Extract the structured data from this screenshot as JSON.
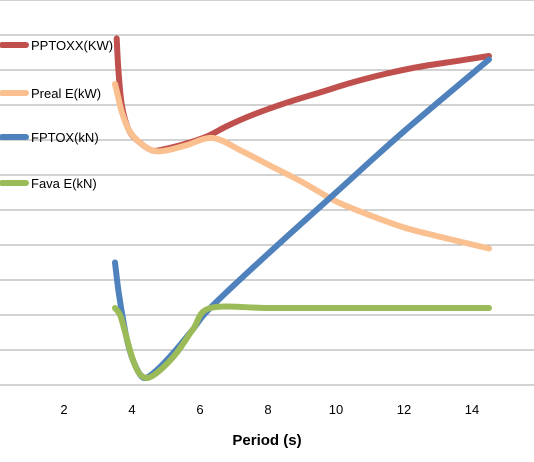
{
  "chart_data": {
    "type": "line",
    "xlabel": "Period (s)",
    "ylabel": "",
    "xlim": [
      0,
      16
    ],
    "ylim": [
      0,
      11
    ],
    "x_ticks": [
      2,
      4,
      6,
      8,
      10,
      12,
      14
    ],
    "grid": "horizontal",
    "legend": "left",
    "series": [
      {
        "name": "PPTOXX(KW)",
        "color": "#c0504d",
        "points": [
          [
            3.55,
            9.9
          ],
          [
            3.6,
            9.0
          ],
          [
            3.7,
            8.0
          ],
          [
            3.9,
            7.3
          ],
          [
            4.2,
            6.95
          ],
          [
            4.6,
            6.7
          ],
          [
            5.0,
            6.75
          ],
          [
            5.6,
            6.9
          ],
          [
            6.2,
            7.1
          ],
          [
            6.8,
            7.4
          ],
          [
            7.5,
            7.7
          ],
          [
            8.5,
            8.05
          ],
          [
            9.5,
            8.35
          ],
          [
            10.5,
            8.65
          ],
          [
            11.5,
            8.9
          ],
          [
            12.5,
            9.1
          ],
          [
            13.5,
            9.25
          ],
          [
            14.5,
            9.4
          ]
        ]
      },
      {
        "name": "Preal E(kW)",
        "color": "#fac090",
        "points": [
          [
            3.5,
            8.6
          ],
          [
            3.6,
            8.2
          ],
          [
            3.7,
            7.8
          ],
          [
            3.9,
            7.3
          ],
          [
            4.2,
            6.95
          ],
          [
            4.6,
            6.7
          ],
          [
            5.0,
            6.7
          ],
          [
            5.6,
            6.85
          ],
          [
            6.2,
            7.05
          ],
          [
            6.6,
            7.0
          ],
          [
            7.2,
            6.7
          ],
          [
            8.0,
            6.3
          ],
          [
            9.0,
            5.8
          ],
          [
            10.0,
            5.25
          ],
          [
            11.0,
            4.85
          ],
          [
            12.0,
            4.5
          ],
          [
            13.0,
            4.25
          ],
          [
            14.5,
            3.9
          ]
        ]
      },
      {
        "name": "FPTOX(kN)",
        "color": "#4f81bd",
        "points": [
          [
            3.5,
            3.5
          ],
          [
            3.6,
            2.7
          ],
          [
            3.75,
            1.8
          ],
          [
            3.9,
            1.1
          ],
          [
            4.1,
            0.55
          ],
          [
            4.35,
            0.2
          ],
          [
            4.7,
            0.4
          ],
          [
            5.2,
            0.9
          ],
          [
            5.8,
            1.6
          ],
          [
            6.3,
            2.2
          ],
          [
            8.0,
            3.75
          ],
          [
            10.0,
            5.5
          ],
          [
            12.0,
            7.25
          ],
          [
            14.5,
            9.3
          ]
        ]
      },
      {
        "name": "Fava E(kN)",
        "color": "#9bbb59",
        "points": [
          [
            3.5,
            2.2
          ],
          [
            3.65,
            2.0
          ],
          [
            3.8,
            1.5
          ],
          [
            4.0,
            0.8
          ],
          [
            4.2,
            0.35
          ],
          [
            4.45,
            0.2
          ],
          [
            4.8,
            0.4
          ],
          [
            5.3,
            0.9
          ],
          [
            5.8,
            1.6
          ],
          [
            6.3,
            2.2
          ],
          [
            8.0,
            2.2
          ],
          [
            10.0,
            2.2
          ],
          [
            12.0,
            2.2
          ],
          [
            14.5,
            2.2
          ]
        ]
      }
    ]
  }
}
